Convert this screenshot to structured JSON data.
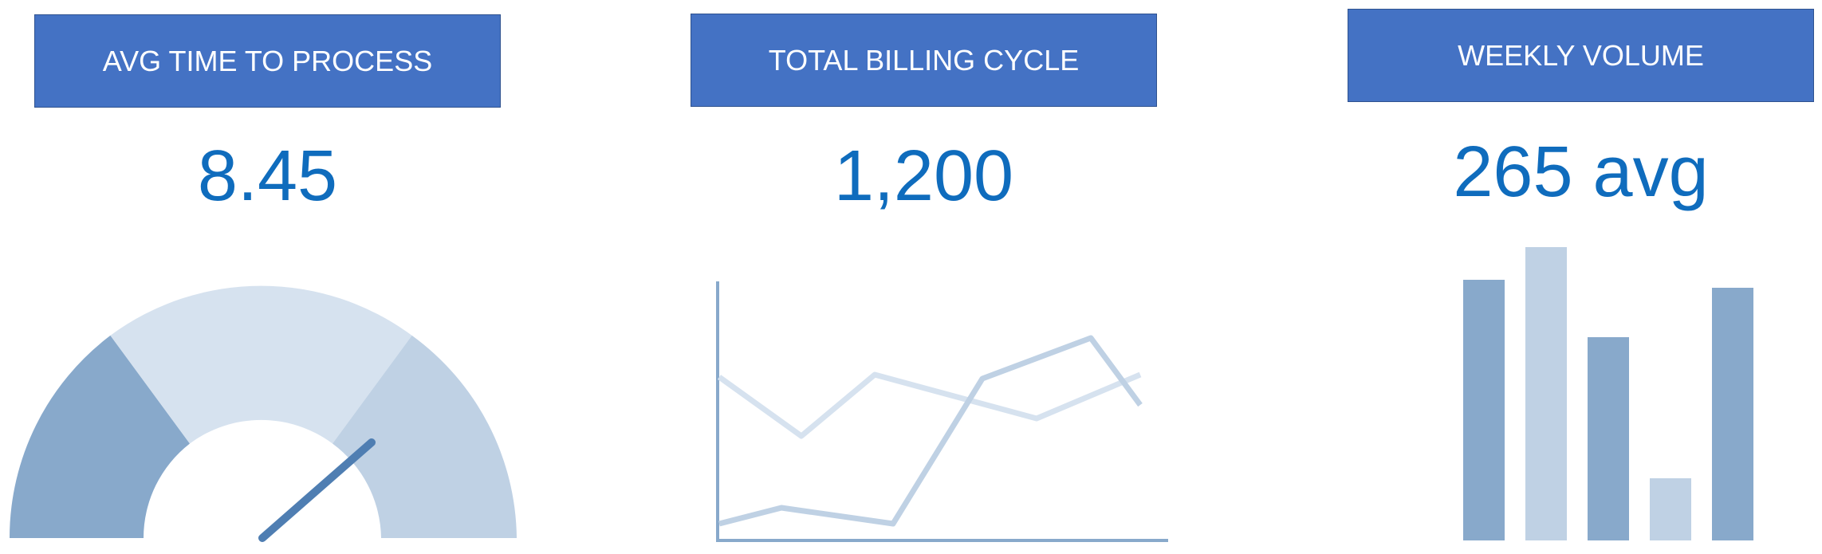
{
  "kpis": [
    {
      "title": "AVG TIME TO PROCESS",
      "value": "8.45",
      "visual": "gauge-icon"
    },
    {
      "title": "TOTAL BILLING CYCLE",
      "value": "1,200",
      "visual": "line-chart-icon"
    },
    {
      "title": "WEEKLY VOLUME",
      "value": "265 avg",
      "visual": "bar-chart-icon"
    }
  ],
  "colors": {
    "header_bg": "#4472c4",
    "value_text": "#0f6cbd",
    "mark_dark": "#88a9cb",
    "mark_mid": "#bfd1e4",
    "mark_light": "#d6e2ef",
    "needle": "#4f7eb2"
  }
}
